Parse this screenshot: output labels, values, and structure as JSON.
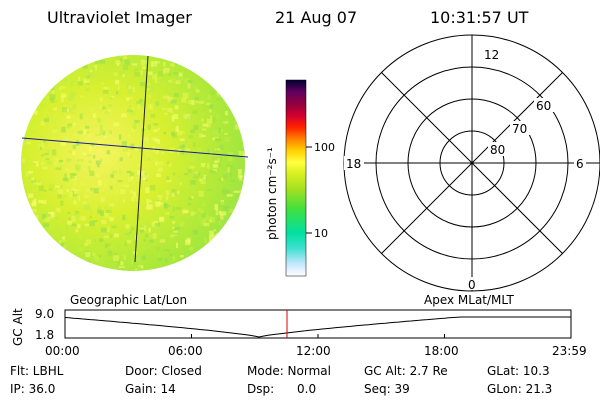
{
  "header": {
    "instrument": "Ultraviolet Imager",
    "date": "21 Aug 07",
    "time": "10:31:57 UT"
  },
  "colorbar": {
    "unit_label": "photon cm⁻²s⁻¹",
    "ticks": [
      "100",
      "10"
    ],
    "colors": [
      "#ffffff",
      "#c8e8ff",
      "#40e0d0",
      "#00e0a0",
      "#40e040",
      "#a0e020",
      "#d8f020",
      "#ffff40",
      "#ffd000",
      "#ff8000",
      "#ff2000",
      "#d00030",
      "#900040",
      "#600060",
      "#300050",
      "#000030"
    ]
  },
  "polar": {
    "mlt_labels": [
      "12",
      "18",
      "6",
      "0"
    ],
    "lat_labels": [
      "60",
      "70",
      "80"
    ]
  },
  "timeline": {
    "left_label": "Geographic Lat/Lon",
    "right_label": "Apex  MLat/MLT",
    "y_axis_title": "GC Alt",
    "y_ticks": [
      "9.0",
      "1.8"
    ],
    "x_ticks": [
      "00:00",
      "06:00",
      "12:00",
      "18:00",
      "23:59"
    ],
    "current_time_hours": 10.53,
    "marker_color": "#e00000"
  },
  "status": {
    "row1": [
      "Flt: LBHL",
      "Door: Closed",
      "Mode: Normal",
      "GC Alt: 2.7 Re",
      "GLat: 10.3"
    ],
    "row2": [
      "IP: 36.0",
      "Gain: 14",
      "Dsp:      0.0",
      "Seq: 39",
      "GLon: 21.3"
    ]
  }
}
